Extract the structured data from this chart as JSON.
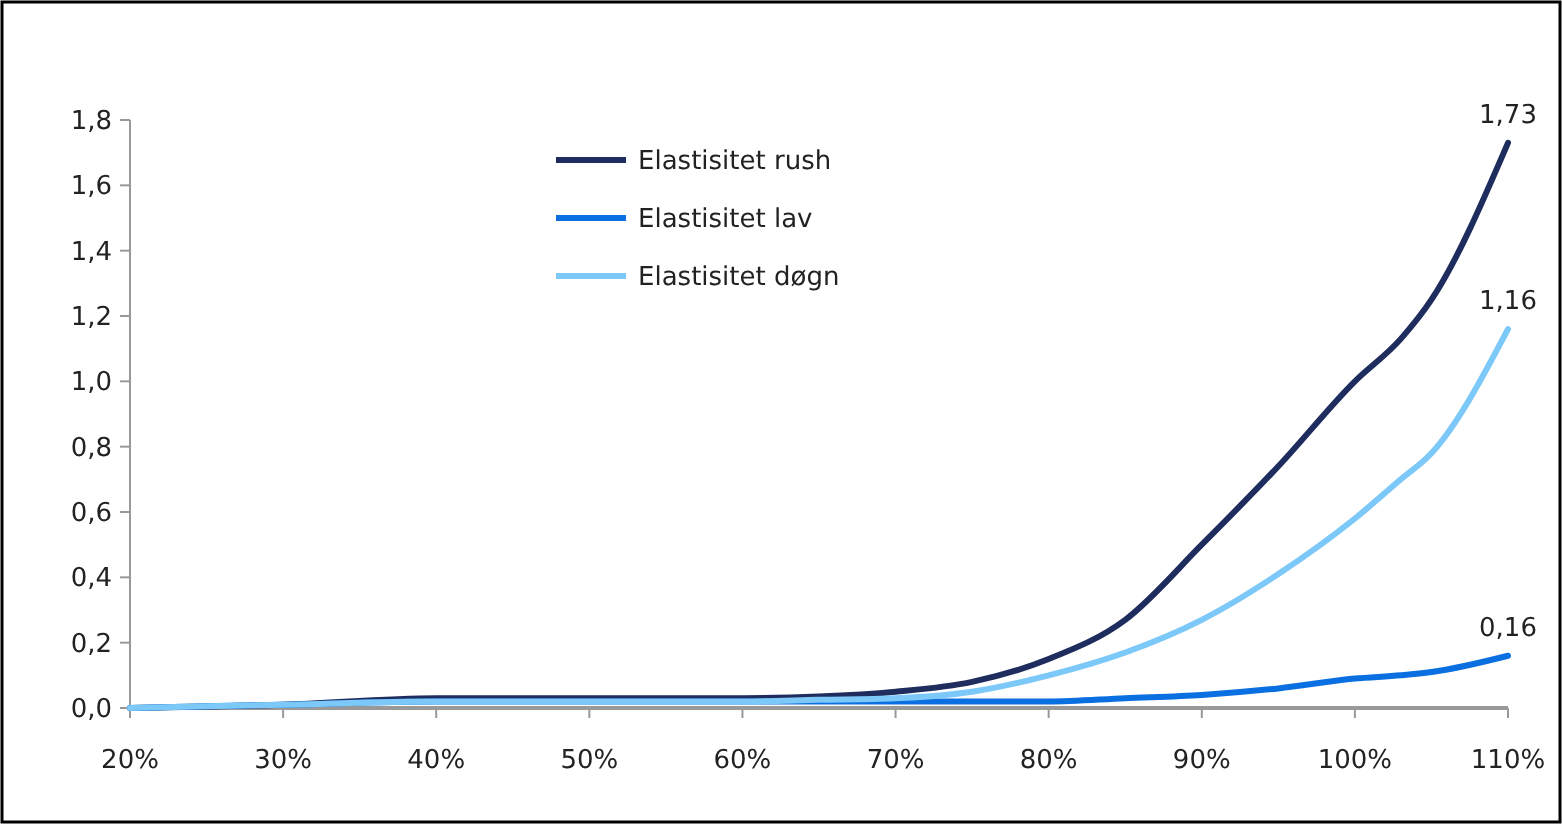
{
  "chart_data": {
    "type": "line",
    "x": [
      20,
      30,
      40,
      50,
      60,
      65,
      70,
      75,
      80,
      85,
      90,
      95,
      100,
      103,
      105,
      110
    ],
    "series": [
      {
        "name": "Elastisitet rush",
        "color": "#1f2d5e",
        "values": [
          0,
          0.01,
          0.03,
          0.03,
          0.03,
          0.035,
          0.05,
          0.08,
          0.15,
          0.27,
          0.5,
          0.74,
          1.0,
          1.13,
          1.25,
          1.73
        ],
        "value_labels": [
          null,
          null,
          null,
          null,
          null,
          null,
          null,
          null,
          null,
          null,
          null,
          null,
          null,
          null,
          null,
          "1,73"
        ]
      },
      {
        "name": "Elastisitet lav",
        "color": "#0a6fe0",
        "values": [
          0,
          0.01,
          0.02,
          0.02,
          0.02,
          0.02,
          0.02,
          0.02,
          0.02,
          0.03,
          0.04,
          0.06,
          0.09,
          0.1,
          0.11,
          0.16
        ],
        "value_labels": [
          null,
          null,
          null,
          null,
          null,
          null,
          null,
          null,
          null,
          null,
          null,
          null,
          null,
          null,
          null,
          "0,16"
        ]
      },
      {
        "name": "Elastisitet døgn",
        "color": "#7cc8f8",
        "values": [
          0,
          0.01,
          0.02,
          0.02,
          0.02,
          0.025,
          0.03,
          0.05,
          0.1,
          0.17,
          0.27,
          0.41,
          0.58,
          0.7,
          0.78,
          1.16
        ],
        "value_labels": [
          null,
          null,
          null,
          null,
          null,
          null,
          null,
          null,
          null,
          null,
          null,
          null,
          null,
          null,
          null,
          "1,16"
        ]
      }
    ],
    "xlim": [
      20,
      110
    ],
    "xticks": [
      {
        "value": 20,
        "label": "20%"
      },
      {
        "value": 30,
        "label": "30%"
      },
      {
        "value": 40,
        "label": "40%"
      },
      {
        "value": 50,
        "label": "50%"
      },
      {
        "value": 60,
        "label": "60%"
      },
      {
        "value": 70,
        "label": "70%"
      },
      {
        "value": 80,
        "label": "80%"
      },
      {
        "value": 90,
        "label": "90%"
      },
      {
        "value": 100,
        "label": "100%"
      },
      {
        "value": 110,
        "label": "110%"
      }
    ],
    "ylim": [
      0,
      1.8
    ],
    "yticks": [
      {
        "value": 0,
        "label": "0,0"
      },
      {
        "value": 0.2,
        "label": "0,2"
      },
      {
        "value": 0.4,
        "label": "0,4"
      },
      {
        "value": 0.6,
        "label": "0,6"
      },
      {
        "value": 0.8,
        "label": "0,8"
      },
      {
        "value": 1.0,
        "label": "1,0"
      },
      {
        "value": 1.2,
        "label": "1,2"
      },
      {
        "value": 1.4,
        "label": "1,4"
      },
      {
        "value": 1.6,
        "label": "1,6"
      },
      {
        "value": 1.8,
        "label": "1,8"
      }
    ],
    "legend": "top",
    "grid": false,
    "marker": "none",
    "line_style": "solid"
  }
}
